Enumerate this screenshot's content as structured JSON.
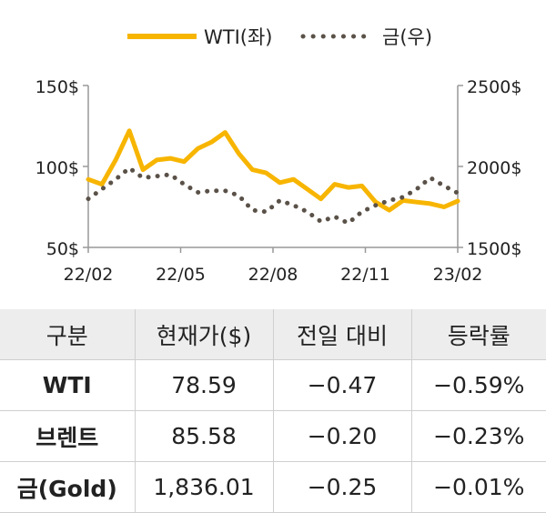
{
  "chart_data": {
    "type": "line",
    "title": "",
    "xlabel": "",
    "x_ticks": [
      "22/02",
      "22/05",
      "22/08",
      "22/11",
      "23/02"
    ],
    "y_left": {
      "ticks": [
        "150$",
        "100$",
        "50$"
      ],
      "ylim": [
        50,
        150
      ]
    },
    "y_right": {
      "ticks": [
        "2500$",
        "2000$",
        "1500$"
      ],
      "ylim": [
        1500,
        2500
      ]
    },
    "legend_position": "top",
    "grid": false,
    "series": [
      {
        "name": "WTI(좌)",
        "axis": "left",
        "color": "#f7b500",
        "style": "solid",
        "x": [
          "22-02-01",
          "22-02-15",
          "22-03-01",
          "22-03-08",
          "22-03-15",
          "22-03-31",
          "22-04-15",
          "22-04-30",
          "22-05-15",
          "22-05-31",
          "22-06-10",
          "22-06-25",
          "22-07-10",
          "22-07-25",
          "22-08-10",
          "22-08-25",
          "22-09-10",
          "22-09-25",
          "22-10-10",
          "22-10-25",
          "22-11-10",
          "22-11-25",
          "22-12-10",
          "22-12-25",
          "22-01-10",
          "22-01-25",
          "23-02-05",
          "23-02-15"
        ],
        "values": [
          92,
          89,
          104,
          122,
          98,
          104,
          105,
          103,
          111,
          115,
          121,
          108,
          98,
          96,
          90,
          92,
          86,
          80,
          89,
          87,
          88,
          78,
          73,
          79,
          78,
          77,
          75,
          78.59
        ]
      },
      {
        "name": "금(우)",
        "axis": "right",
        "color": "#5a5148",
        "style": "dotted",
        "x": [
          "22-02-01",
          "22-02-15",
          "22-03-01",
          "22-03-08",
          "22-03-15",
          "22-03-31",
          "22-04-15",
          "22-04-30",
          "22-05-15",
          "22-05-31",
          "22-06-10",
          "22-06-25",
          "22-07-10",
          "22-07-25",
          "22-08-10",
          "22-08-25",
          "22-09-10",
          "22-09-25",
          "22-10-10",
          "22-10-25",
          "22-11-10",
          "22-11-25",
          "22-12-10",
          "22-12-25",
          "23-01-10",
          "23-01-25",
          "23-02-05",
          "23-02-15"
        ],
        "values": [
          1800,
          1860,
          1920,
          1990,
          1930,
          1940,
          1950,
          1890,
          1840,
          1850,
          1850,
          1820,
          1730,
          1720,
          1790,
          1760,
          1720,
          1660,
          1690,
          1650,
          1720,
          1760,
          1790,
          1810,
          1860,
          1930,
          1880,
          1836
        ]
      }
    ]
  },
  "table": {
    "headers": [
      "구분",
      "현재가($)",
      "전일 대비",
      "등락률"
    ],
    "rows": [
      [
        "WTI",
        "78.59",
        "−0.47",
        "−0.59%"
      ],
      [
        "브렌트",
        "85.58",
        "−0.20",
        "−0.23%"
      ],
      [
        "금(Gold)",
        "1,836.01",
        "−0.25",
        "−0.01%"
      ]
    ]
  }
}
